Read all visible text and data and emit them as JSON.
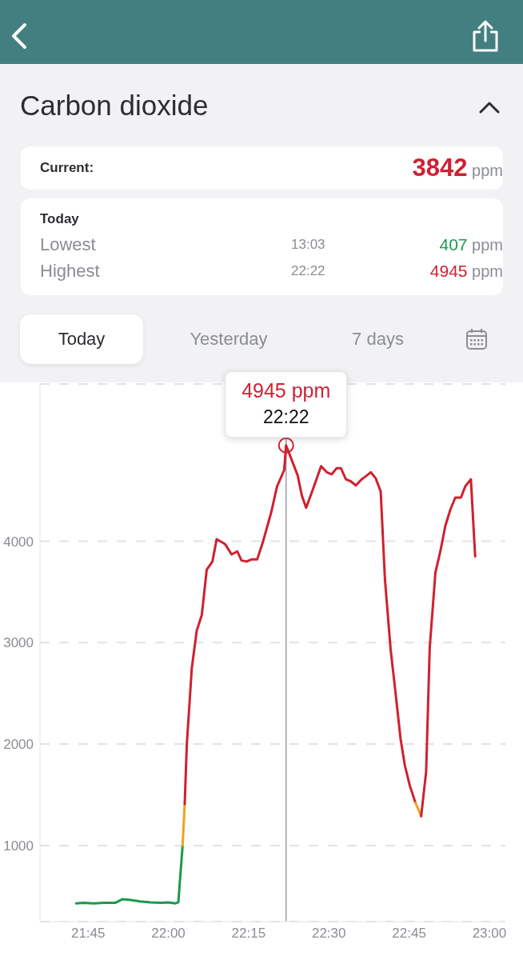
{
  "chart_data": {
    "type": "line",
    "title": "Carbon dioxide",
    "xlim": [
      21.6,
      23.05
    ],
    "xticks": [
      {
        "value": 21.75,
        "label": "21:45"
      },
      {
        "value": 22,
        "label": "22:00"
      },
      {
        "value": 22.25,
        "label": "22:15"
      },
      {
        "value": 22.5,
        "label": "22:30"
      },
      {
        "value": 22.75,
        "label": "22:45"
      },
      {
        "value": 23,
        "label": "23:00"
      }
    ],
    "ylim": [
      250,
      5550
    ],
    "yticks": [
      1000,
      2000,
      3000,
      4000
    ],
    "grid": "y",
    "line_style": "solid",
    "series": [
      {
        "color": "#1a9a4c",
        "x": [
          21.7124,
          21.7345,
          21.7677,
          21.8009,
          21.8341,
          21.8562,
          21.8783,
          21.9115,
          21.9447,
          21.9779,
          22.0,
          22.0222,
          22.031,
          22.0443
        ],
        "values": [
          430,
          435,
          430,
          435,
          435,
          470,
          465,
          450,
          440,
          435,
          440,
          430,
          440,
          1000
        ]
      },
      {
        "color": "#eea21c",
        "x": [
          22.0443,
          22.0509
        ],
        "values": [
          1000,
          1410
        ]
      },
      {
        "color": "#d0202e",
        "x": [
          22.0509,
          22.0575,
          22.073,
          22.0885,
          22.104,
          22.1195,
          22.1372,
          22.1505,
          22.177,
          22.1969,
          22.2146,
          22.2279,
          22.2434,
          22.2589,
          22.2766,
          22.2943,
          22.3208,
          22.3385,
          22.3606,
          22.3667,
          22.4027,
          22.4159,
          22.4292,
          22.4513,
          22.4757,
          22.4934,
          22.5088,
          22.5243,
          22.5376,
          22.5531,
          22.5686,
          22.5841,
          22.6018,
          22.615,
          22.6305,
          22.646,
          22.6615,
          22.6748,
          22.6925,
          22.7058,
          22.7235,
          22.7367,
          22.7522,
          22.7699
        ],
        "values": [
          1410,
          2000,
          2750,
          3120,
          3270,
          3720,
          3800,
          4020,
          3970,
          3870,
          3900,
          3810,
          3800,
          3820,
          3820,
          3990,
          4290,
          4540,
          4700,
          4945,
          4650,
          4450,
          4330,
          4520,
          4740,
          4680,
          4660,
          4720,
          4720,
          4610,
          4590,
          4550,
          4610,
          4640,
          4680,
          4620,
          4490,
          3620,
          2930,
          2560,
          2050,
          1790,
          1590,
          1420
        ]
      },
      {
        "color": "#eea21c",
        "x": [
          22.7699,
          22.7876
        ],
        "values": [
          1420,
          1290
        ]
      },
      {
        "color": "#d0202e",
        "x": [
          22.7876,
          22.8031,
          22.8142,
          22.8319,
          22.8473,
          22.8628,
          22.8783,
          22.8938,
          22.9115,
          22.9248,
          22.9425,
          22.9558
        ],
        "values": [
          1290,
          1730,
          2950,
          3690,
          3900,
          4150,
          4310,
          4430,
          4430,
          4540,
          4610,
          3850
        ]
      }
    ],
    "ref_lines": [
      {
        "axis": "x",
        "value": 22.3667,
        "color": "#9a9ea3"
      }
    ],
    "annotations": [
      "Current:",
      "3842 ppm",
      "Today",
      "Lowest",
      "13:03",
      "407 ppm",
      "Highest",
      "22:22",
      "4945 ppm",
      "Today",
      "Yesterday",
      "7 days",
      {
        "text": "4945 ppm",
        "x": 22.3667,
        "y": 4945
      },
      {
        "text": "22:22",
        "x": 22.3667,
        "y": 4945
      }
    ]
  }
}
